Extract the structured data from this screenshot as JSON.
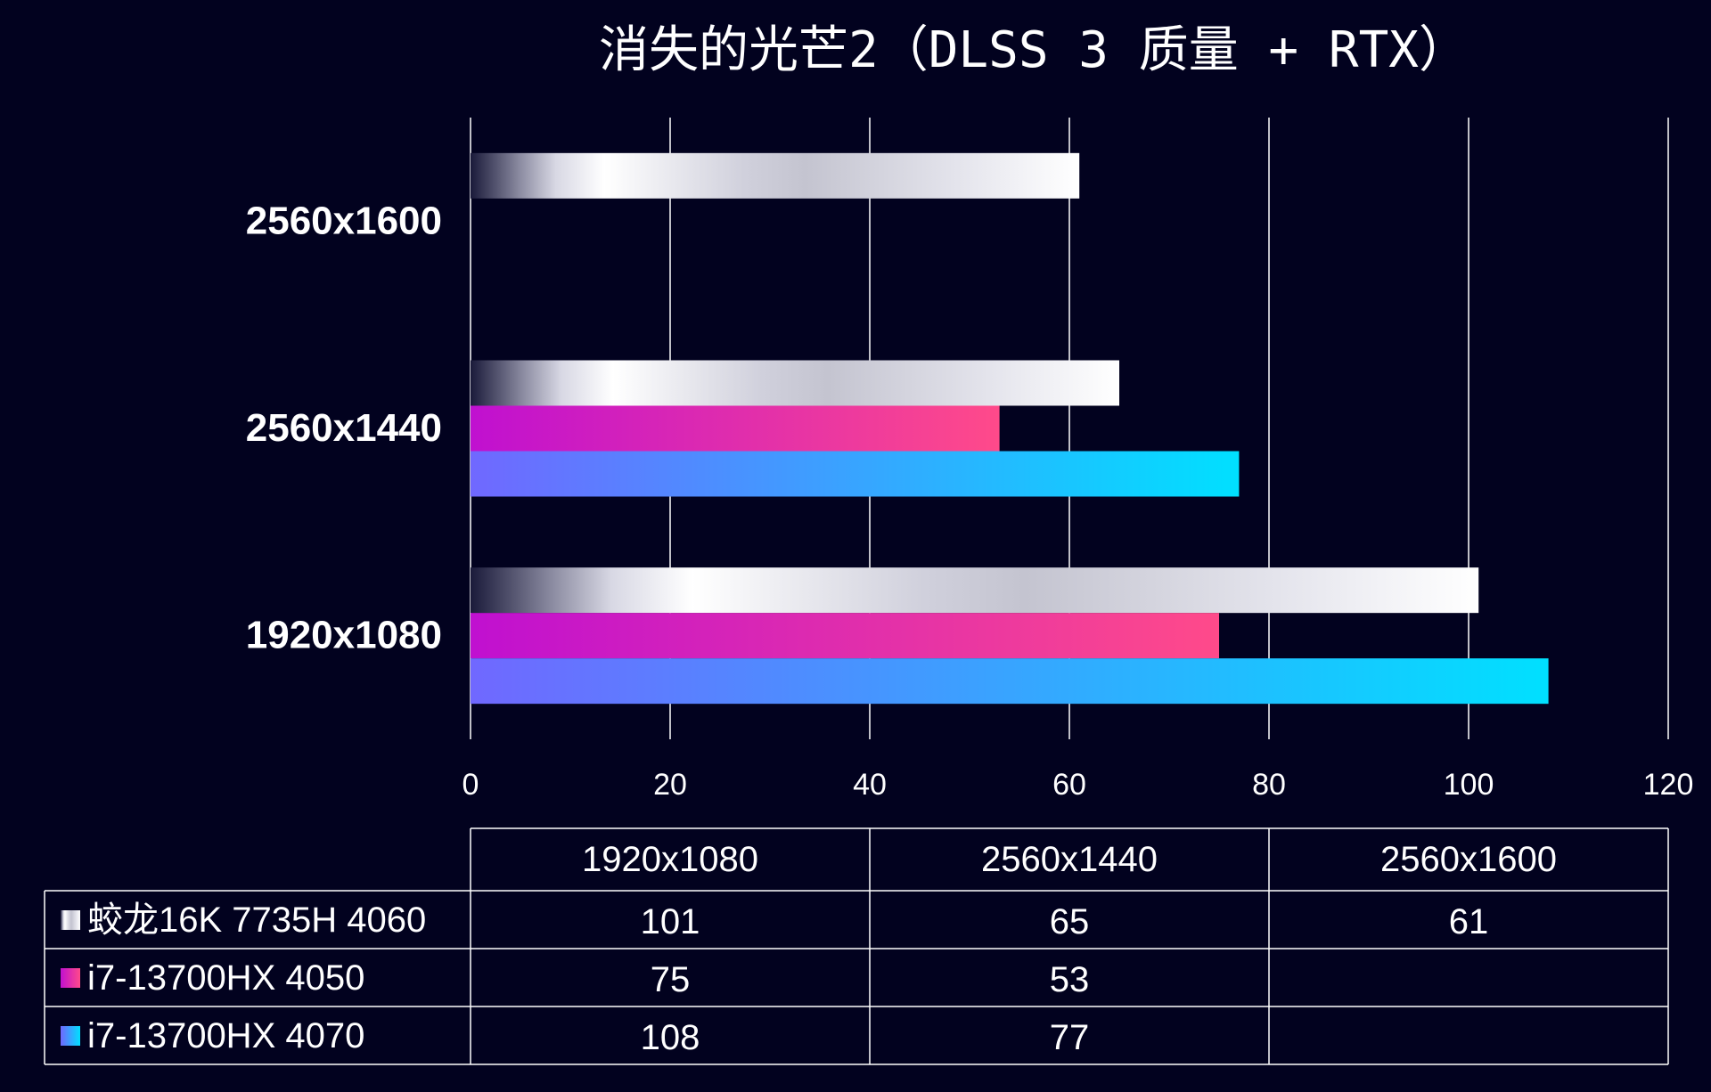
{
  "chart_data": {
    "type": "bar",
    "orientation": "horizontal",
    "title": "消失的光芒2（DLSS 3 质量 + RTX）",
    "categories": [
      "1920x1080",
      "2560x1440",
      "2560x1600"
    ],
    "xlim": [
      0,
      120
    ],
    "x_ticks": [
      "0",
      "20",
      "40",
      "60",
      "80",
      "100",
      "120"
    ],
    "grid": true,
    "series": [
      {
        "name": "蛟龙16K 7735H 4060",
        "values": [
          101,
          65,
          61
        ],
        "value_labels": [
          "101",
          "65",
          "61"
        ],
        "color": "#e8e8f0"
      },
      {
        "name": "i7-13700HX 4050",
        "values": [
          75,
          53,
          null
        ],
        "value_labels": [
          "75",
          "53",
          ""
        ],
        "color": "#e020c0"
      },
      {
        "name": "i7-13700HX 4070",
        "values": [
          108,
          77,
          null
        ],
        "value_labels": [
          "108",
          "77",
          ""
        ],
        "color": "#30c8ff"
      }
    ]
  }
}
